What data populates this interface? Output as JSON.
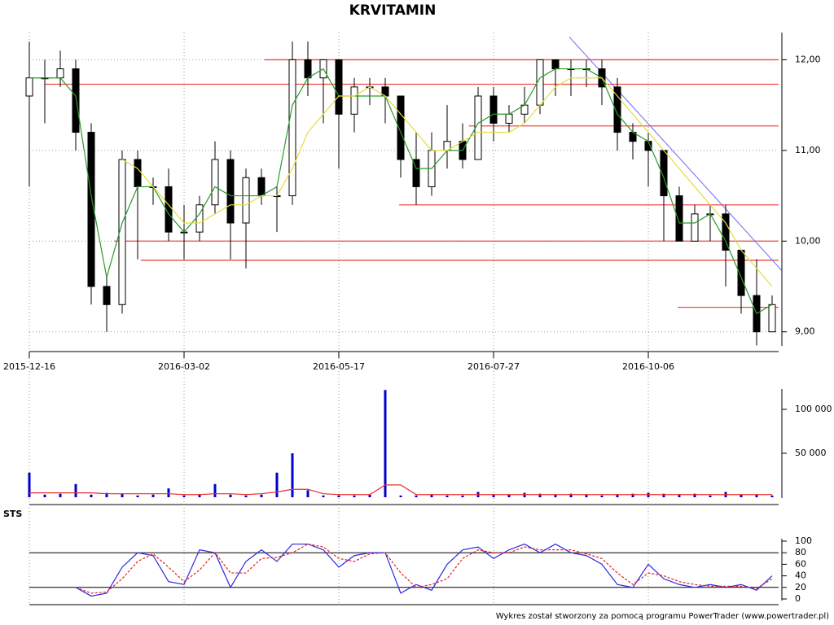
{
  "title": "KRVITAMIN",
  "footer": "Wykres został stworzony za pomocą programu PowerTrader (www.powertrader.pl)",
  "chart_data": [
    {
      "type": "candlestick",
      "categories": [
        "2015-12-16",
        null,
        null,
        null,
        null,
        null,
        null,
        null,
        null,
        null,
        "2016-03-02",
        null,
        null,
        null,
        null,
        null,
        null,
        null,
        null,
        null,
        "2016-05-17",
        null,
        null,
        null,
        null,
        null,
        null,
        null,
        null,
        null,
        "2016-07-27",
        null,
        null,
        null,
        null,
        null,
        null,
        null,
        null,
        null,
        "2016-10-06",
        null,
        null,
        null,
        null,
        null,
        null,
        null,
        null
      ],
      "open": [
        11.6,
        11.8,
        11.8,
        11.9,
        11.2,
        9.5,
        9.3,
        10.9,
        10.6,
        10.6,
        10.1,
        10.1,
        10.4,
        10.9,
        10.2,
        10.7,
        10.5,
        10.5,
        12.0,
        11.8,
        12.0,
        11.4,
        11.7,
        11.7,
        11.6,
        10.9,
        10.6,
        11.0,
        11.1,
        10.9,
        11.6,
        11.3,
        11.4,
        11.5,
        12.0,
        11.9,
        11.9,
        11.9,
        11.7,
        11.2,
        11.1,
        11.0,
        10.5,
        10.0,
        10.3,
        10.3,
        9.9,
        9.4,
        9.0
      ],
      "high": [
        12.2,
        12.0,
        12.1,
        12.0,
        11.3,
        9.6,
        11.0,
        11.0,
        10.7,
        10.8,
        10.4,
        10.5,
        11.1,
        11.0,
        10.8,
        10.8,
        10.6,
        12.2,
        12.2,
        12.0,
        12.0,
        11.8,
        11.8,
        11.8,
        11.6,
        11.2,
        11.2,
        11.5,
        11.3,
        11.7,
        11.7,
        11.5,
        11.7,
        12.0,
        12.0,
        12.0,
        12.0,
        12.0,
        11.8,
        11.3,
        11.2,
        11.0,
        10.6,
        10.4,
        10.4,
        10.4,
        9.9,
        9.8,
        9.4
      ],
      "low": [
        10.6,
        11.3,
        11.7,
        11.0,
        9.3,
        9.0,
        9.2,
        9.8,
        10.4,
        10.0,
        9.8,
        10.0,
        10.3,
        9.8,
        9.7,
        10.4,
        10.1,
        10.4,
        11.6,
        11.3,
        10.8,
        11.2,
        11.5,
        11.3,
        10.7,
        10.4,
        10.5,
        10.8,
        10.8,
        10.9,
        11.1,
        11.2,
        11.3,
        11.4,
        11.6,
        11.6,
        11.7,
        11.5,
        11.0,
        10.9,
        10.6,
        10.0,
        10.0,
        10.0,
        10.0,
        9.5,
        9.2,
        8.85,
        9.0
      ],
      "close": [
        11.8,
        11.8,
        11.9,
        11.2,
        9.5,
        9.3,
        10.9,
        10.6,
        10.6,
        10.1,
        10.1,
        10.4,
        10.9,
        10.2,
        10.7,
        10.5,
        10.5,
        12.0,
        11.8,
        12.0,
        11.4,
        11.7,
        11.7,
        11.6,
        10.9,
        10.6,
        11.0,
        11.1,
        10.9,
        11.6,
        11.3,
        11.4,
        11.5,
        12.0,
        11.9,
        11.9,
        11.9,
        11.7,
        11.2,
        11.1,
        11.0,
        10.5,
        10.0,
        10.3,
        10.3,
        9.9,
        9.4,
        9.0,
        9.3
      ],
      "series": [
        {
          "color": "#2a9a2a",
          "values": [
            11.8,
            11.8,
            11.8,
            11.6,
            10.5,
            9.6,
            10.2,
            10.6,
            10.6,
            10.3,
            10.1,
            10.3,
            10.6,
            10.5,
            10.5,
            10.5,
            10.6,
            11.5,
            11.8,
            11.9,
            11.6,
            11.6,
            11.6,
            11.6,
            11.2,
            10.8,
            10.8,
            11.0,
            11.0,
            11.3,
            11.4,
            11.4,
            11.5,
            11.8,
            11.9,
            11.9,
            11.9,
            11.8,
            11.4,
            11.2,
            11.1,
            10.7,
            10.2,
            10.2,
            10.3,
            10.0,
            9.6,
            9.2,
            9.3
          ]
        },
        {
          "color": "#e6dc3c",
          "values": [
            null,
            null,
            null,
            null,
            null,
            null,
            10.9,
            10.8,
            10.6,
            10.4,
            10.2,
            10.2,
            10.3,
            10.4,
            10.4,
            10.5,
            10.5,
            10.8,
            11.2,
            11.4,
            11.6,
            11.6,
            11.7,
            11.6,
            11.4,
            11.2,
            11.0,
            11.0,
            11.1,
            11.2,
            11.2,
            11.2,
            11.3,
            11.5,
            11.7,
            11.8,
            11.8,
            11.8,
            11.6,
            11.4,
            11.2,
            11.0,
            10.8,
            10.6,
            10.4,
            10.2,
            9.9,
            9.7,
            9.5
          ]
        }
      ],
      "levels": [
        {
          "value": 12.0,
          "start": 15.2
        },
        {
          "value": 11.73,
          "start": 1
        },
        {
          "value": 11.27,
          "start": 28.4
        },
        {
          "value": 10.4,
          "start": 23.9
        },
        {
          "value": 10.0,
          "start": 5.5
        },
        {
          "value": 9.79,
          "start": 7.2
        },
        {
          "value": 9.27,
          "start": 41.9
        }
      ],
      "level_color": "#f04848",
      "trendline": {
        "x": [
          34.9,
          48.6
        ],
        "values": [
          12.25,
          9.68
        ],
        "color": "#6a6af0"
      },
      "ylim": [
        8.8,
        12.3
      ],
      "yticks": [
        {
          "value": 9,
          "label": "9,00"
        },
        {
          "value": 10,
          "label": "10,00"
        },
        {
          "value": 11,
          "label": "11,00"
        },
        {
          "value": 12,
          "label": "12,00"
        }
      ],
      "grid": true
    },
    {
      "type": "bar",
      "color": "#0000cc",
      "values": [
        28000,
        3000,
        4000,
        15000,
        3000,
        5000,
        4000,
        2000,
        3000,
        10000,
        2000,
        3000,
        15000,
        3000,
        2000,
        3000,
        28000,
        50000,
        8000,
        2000,
        2000,
        2000,
        3000,
        122000,
        2000,
        2000,
        3000,
        2000,
        2000,
        6000,
        3000,
        3000,
        5000,
        4000,
        3000,
        4000,
        3000,
        2000,
        3000,
        4000,
        5000,
        4000,
        3000,
        4000,
        2000,
        6000,
        3000,
        3000,
        2000
      ],
      "series": [
        {
          "color": "#e83030",
          "values": [
            5000,
            5000,
            5000,
            5000,
            5000,
            4000,
            4000,
            4000,
            4000,
            4000,
            3000,
            3000,
            4000,
            4000,
            3000,
            4000,
            6000,
            9000,
            9000,
            4000,
            3000,
            3000,
            3000,
            14000,
            14000,
            3000,
            3000,
            3000,
            3000,
            3000,
            3000,
            3000,
            3000,
            3000,
            3000,
            3000,
            3000,
            3000,
            3000,
            3000,
            3000,
            3000,
            3000,
            3000,
            3000,
            3000,
            3000,
            3000,
            3000
          ]
        }
      ],
      "ylim": [
        0,
        125000
      ],
      "yticks": [
        {
          "value": 50000,
          "label": "50 000"
        },
        {
          "value": 100000,
          "label": "100 000"
        }
      ]
    },
    {
      "type": "line",
      "title": "STS",
      "series": [
        {
          "color": "#2a2ae0",
          "values": [
            null,
            null,
            null,
            20,
            5,
            10,
            55,
            80,
            75,
            30,
            25,
            85,
            80,
            20,
            65,
            85,
            65,
            95,
            95,
            85,
            55,
            75,
            80,
            80,
            10,
            25,
            15,
            60,
            85,
            90,
            70,
            85,
            95,
            80,
            95,
            80,
            75,
            60,
            25,
            20,
            60,
            35,
            25,
            20,
            25,
            20,
            25,
            15,
            40
          ]
        },
        {
          "color": "#e02020",
          "dashed": true,
          "values": [
            null,
            null,
            null,
            20,
            10,
            12,
            35,
            65,
            78,
            55,
            30,
            50,
            80,
            45,
            45,
            70,
            72,
            80,
            95,
            90,
            70,
            65,
            78,
            80,
            45,
            20,
            25,
            35,
            70,
            85,
            80,
            80,
            90,
            85,
            85,
            85,
            78,
            70,
            45,
            25,
            45,
            40,
            30,
            25,
            22,
            22,
            22,
            18,
            35
          ]
        }
      ],
      "hlines": [
        20,
        80
      ],
      "ylim": [
        0,
        100
      ],
      "yticks": [
        0,
        20,
        40,
        60,
        80,
        100
      ]
    }
  ]
}
